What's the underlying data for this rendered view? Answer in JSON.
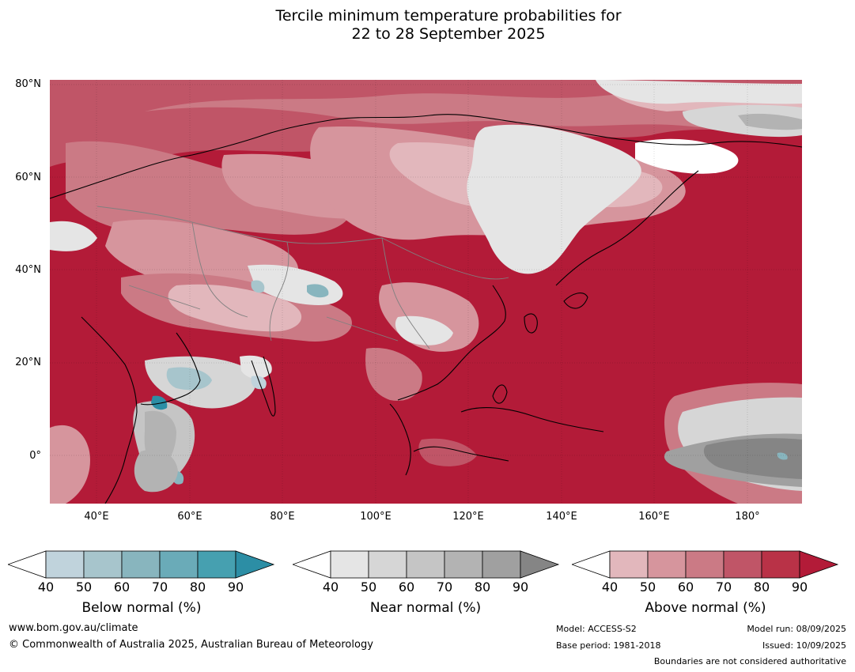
{
  "title_line1": "Tercile minimum temperature probabilities for",
  "title_line2": "22 to 28 September 2025",
  "map": {
    "lat_labels": [
      "80°N",
      "60°N",
      "40°N",
      "20°N",
      "0°"
    ],
    "lon_labels": [
      "40°E",
      "60°E",
      "80°E",
      "100°E",
      "120°E",
      "140°E",
      "160°E",
      "180°"
    ],
    "lat_range": [
      -10,
      80
    ],
    "lon_range": [
      30,
      192
    ],
    "background_category": "Above normal 90",
    "colors": {
      "below": [
        "#c0d3dc",
        "#a7c5cc",
        "#88b5be",
        "#6aabb8",
        "#46a0b0",
        "#2c8ea5"
      ],
      "near": [
        "#e5e5e5",
        "#d6d6d6",
        "#c5c5c5",
        "#b3b3b3",
        "#a0a0a0",
        "#858585"
      ],
      "above": [
        "#e2b7bc",
        "#d6959d",
        "#cb7a85",
        "#c05567",
        "#b93247",
        "#b31b38"
      ],
      "coastline": "#000000",
      "border": "#808080"
    }
  },
  "colorbars": [
    {
      "title": "Below normal (%)",
      "ticks": [
        "40",
        "50",
        "60",
        "70",
        "80",
        "90"
      ]
    },
    {
      "title": "Near normal (%)",
      "ticks": [
        "40",
        "50",
        "60",
        "70",
        "80",
        "90"
      ]
    },
    {
      "title": "Above normal (%)",
      "ticks": [
        "40",
        "50",
        "60",
        "70",
        "80",
        "90"
      ]
    }
  ],
  "footer": {
    "website": "www.bom.gov.au/climate",
    "copyright": "© Commonwealth of Australia 2025, Australian Bureau of Meteorology",
    "model": "Model: ACCESS-S2",
    "base_period": "Base period: 1981-2018",
    "model_run": "Model run: 08/09/2025",
    "issued": "Issued: 10/09/2025",
    "disclaimer": "Boundaries are not considered authoritative"
  }
}
